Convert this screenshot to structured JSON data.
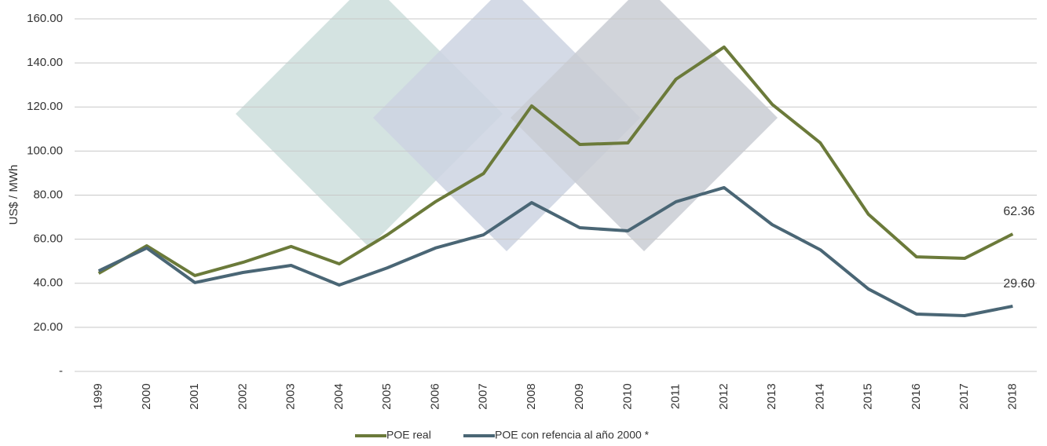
{
  "chart_data": {
    "type": "line",
    "y_label": "US$ / MWh",
    "categories": [
      "1999",
      "2000",
      "2001",
      "2002",
      "2003",
      "2004",
      "2005",
      "2006",
      "2007",
      "2008",
      "2009",
      "2010",
      "2011",
      "2012",
      "2013",
      "2014",
      "2015",
      "2016",
      "2017",
      "2018"
    ],
    "series": [
      {
        "name": "POE real",
        "color": "#6b7a3a",
        "values": [
          44.5,
          57,
          43.5,
          49.5,
          56.7,
          48.8,
          62,
          77,
          89.8,
          120.5,
          103,
          103.7,
          132.6,
          147.2,
          121.2,
          103.7,
          71.3,
          52,
          51.3,
          62.36
        ],
        "value_labels": [
          null,
          null,
          null,
          null,
          null,
          null,
          null,
          null,
          null,
          null,
          null,
          null,
          null,
          null,
          null,
          null,
          null,
          null,
          null,
          "62.36"
        ]
      },
      {
        "name": "POE con refencia al año 2000 *",
        "color": "#4a6675",
        "values": [
          45.6,
          56,
          40.3,
          44.9,
          48.1,
          39.2,
          47,
          56,
          62,
          76.6,
          65.2,
          63.8,
          77,
          83.4,
          66.6,
          55.2,
          37.4,
          26,
          25.3,
          29.6
        ],
        "value_labels": [
          null,
          null,
          null,
          null,
          null,
          null,
          null,
          null,
          null,
          null,
          null,
          null,
          null,
          null,
          null,
          null,
          null,
          null,
          null,
          "29.60"
        ]
      }
    ],
    "ylim": [
      0,
      160
    ],
    "yticks": [
      {
        "value": 0,
        "label": "-"
      },
      {
        "value": 20,
        "label": "20.00"
      },
      {
        "value": 40,
        "label": "40.00"
      },
      {
        "value": 60,
        "label": "60.00"
      },
      {
        "value": 80,
        "label": "80.00"
      },
      {
        "value": 100,
        "label": "100.00"
      },
      {
        "value": 120,
        "label": "120.00"
      },
      {
        "value": 140,
        "label": "140.00"
      },
      {
        "value": 160,
        "label": "160.00"
      }
    ],
    "grid": true
  }
}
